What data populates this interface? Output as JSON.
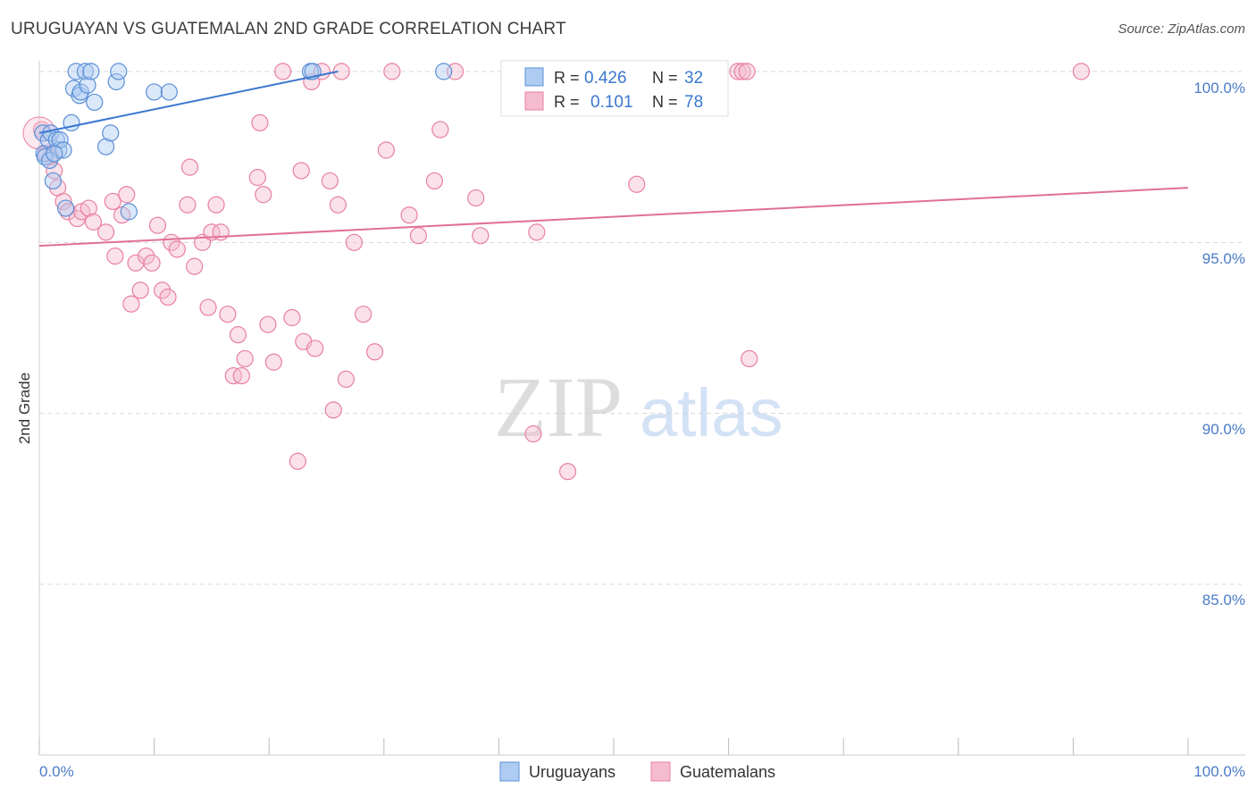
{
  "header": {
    "title": "URUGUAYAN VS GUATEMALAN 2ND GRADE CORRELATION CHART",
    "source": "Source: ZipAtlas.com"
  },
  "legend_top": {
    "rows": [
      {
        "r_label": "R =",
        "r_value": "0.426",
        "n_label": "N =",
        "n_value": "32"
      },
      {
        "r_label": "R =",
        "r_value": "0.101",
        "n_label": "N =",
        "n_value": "78"
      }
    ]
  },
  "legend_bottom": {
    "items": [
      {
        "label": "Uruguayans"
      },
      {
        "label": "Guatemalans"
      }
    ]
  },
  "watermark": {
    "part1": "ZIP",
    "part2": "atlas"
  },
  "colors": {
    "blue": "#5b8fd6",
    "blue_fill": "#aeccf2",
    "blue_line": "#3b78d0",
    "pink": "#e8809f",
    "pink_fill": "#f5bcd0",
    "pink_line": "#e07099",
    "tick_text": "#4a7cc7",
    "grid": "#d8d8d8"
  },
  "chart_data": {
    "type": "scatter",
    "title": "URUGUAYAN VS GUATEMALAN 2ND GRADE CORRELATION CHART",
    "xlabel": "",
    "ylabel": "2nd Grade",
    "xlim": [
      0,
      100
    ],
    "ylim": [
      80.5,
      100.5
    ],
    "x_tick_labels": [
      "0.0%",
      "100.0%"
    ],
    "y_ticks": [
      {
        "value": 100,
        "label": "100.0%"
      },
      {
        "value": 95,
        "label": "95.0%"
      },
      {
        "value": 90,
        "label": "90.0%"
      },
      {
        "value": 85,
        "label": "85.0%"
      }
    ],
    "series": [
      {
        "name": "Uruguayans",
        "R": 0.426,
        "N": 32,
        "trend": {
          "x0": 0,
          "y0": 98.2,
          "x1": 26,
          "y1": 100.0
        },
        "points": [
          [
            0.3,
            98.2
          ],
          [
            0.4,
            97.6
          ],
          [
            0.5,
            97.5
          ],
          [
            0.8,
            98.0
          ],
          [
            1.0,
            98.2
          ],
          [
            1.2,
            96.8
          ],
          [
            1.5,
            98.0
          ],
          [
            1.7,
            97.7
          ],
          [
            1.8,
            98.0
          ],
          [
            2.1,
            97.7
          ],
          [
            2.3,
            96.0
          ],
          [
            2.8,
            98.5
          ],
          [
            3.0,
            99.5
          ],
          [
            3.2,
            100.0
          ],
          [
            3.5,
            99.3
          ],
          [
            3.6,
            99.4
          ],
          [
            4.0,
            100.0
          ],
          [
            4.2,
            99.6
          ],
          [
            4.5,
            100.0
          ],
          [
            4.8,
            99.1
          ],
          [
            5.8,
            97.8
          ],
          [
            6.2,
            98.2
          ],
          [
            6.7,
            99.7
          ],
          [
            6.9,
            100.0
          ],
          [
            7.8,
            95.9
          ],
          [
            10.0,
            99.4
          ],
          [
            11.3,
            99.4
          ],
          [
            23.6,
            100.0
          ],
          [
            23.8,
            100.0
          ],
          [
            35.2,
            100.0
          ],
          [
            0.9,
            97.4
          ],
          [
            1.3,
            97.6
          ]
        ]
      },
      {
        "name": "Guatemalans",
        "R": 0.101,
        "N": 78,
        "trend": {
          "x0": 0,
          "y0": 94.9,
          "x1": 100,
          "y1": 96.6
        },
        "points": [
          [
            0.2,
            98.3
          ],
          [
            1.0,
            97.5
          ],
          [
            1.3,
            97.1
          ],
          [
            1.6,
            96.6
          ],
          [
            2.1,
            96.2
          ],
          [
            2.5,
            95.9
          ],
          [
            3.3,
            95.7
          ],
          [
            3.7,
            95.9
          ],
          [
            4.3,
            96.0
          ],
          [
            4.7,
            95.6
          ],
          [
            5.8,
            95.3
          ],
          [
            6.4,
            96.2
          ],
          [
            6.6,
            94.6
          ],
          [
            7.2,
            95.8
          ],
          [
            7.6,
            96.4
          ],
          [
            8.0,
            93.2
          ],
          [
            8.4,
            94.4
          ],
          [
            8.8,
            93.6
          ],
          [
            9.3,
            94.6
          ],
          [
            9.8,
            94.4
          ],
          [
            10.3,
            95.5
          ],
          [
            10.7,
            93.6
          ],
          [
            11.2,
            93.4
          ],
          [
            11.5,
            95.0
          ],
          [
            12.0,
            94.8
          ],
          [
            12.9,
            96.1
          ],
          [
            13.1,
            97.2
          ],
          [
            13.5,
            94.3
          ],
          [
            14.2,
            95.0
          ],
          [
            14.7,
            93.1
          ],
          [
            15.0,
            95.3
          ],
          [
            15.4,
            96.1
          ],
          [
            15.8,
            95.3
          ],
          [
            16.4,
            92.9
          ],
          [
            16.9,
            91.1
          ],
          [
            17.3,
            92.3
          ],
          [
            17.6,
            91.1
          ],
          [
            17.9,
            91.6
          ],
          [
            19.0,
            96.9
          ],
          [
            19.2,
            98.5
          ],
          [
            19.5,
            96.4
          ],
          [
            19.9,
            92.6
          ],
          [
            20.4,
            91.5
          ],
          [
            21.2,
            100.0
          ],
          [
            22.0,
            92.8
          ],
          [
            22.5,
            88.6
          ],
          [
            22.8,
            97.1
          ],
          [
            23.0,
            92.1
          ],
          [
            23.7,
            99.7
          ],
          [
            24.0,
            91.9
          ],
          [
            24.6,
            100.0
          ],
          [
            25.3,
            96.8
          ],
          [
            25.6,
            90.1
          ],
          [
            26.0,
            96.1
          ],
          [
            26.3,
            100.0
          ],
          [
            26.7,
            91.0
          ],
          [
            27.4,
            95.0
          ],
          [
            28.2,
            92.9
          ],
          [
            29.2,
            91.8
          ],
          [
            30.2,
            97.7
          ],
          [
            30.7,
            100.0
          ],
          [
            32.2,
            95.8
          ],
          [
            33.0,
            95.2
          ],
          [
            34.4,
            96.8
          ],
          [
            34.9,
            98.3
          ],
          [
            36.2,
            100.0
          ],
          [
            38.0,
            96.3
          ],
          [
            38.4,
            95.2
          ],
          [
            43.0,
            89.4
          ],
          [
            43.3,
            95.3
          ],
          [
            46.0,
            88.3
          ],
          [
            52.0,
            96.7
          ],
          [
            60.8,
            100.0
          ],
          [
            61.2,
            100.0
          ],
          [
            61.6,
            100.0
          ],
          [
            61.8,
            91.6
          ],
          [
            90.7,
            100.0
          ],
          [
            0.6,
            97.6
          ]
        ]
      }
    ]
  }
}
